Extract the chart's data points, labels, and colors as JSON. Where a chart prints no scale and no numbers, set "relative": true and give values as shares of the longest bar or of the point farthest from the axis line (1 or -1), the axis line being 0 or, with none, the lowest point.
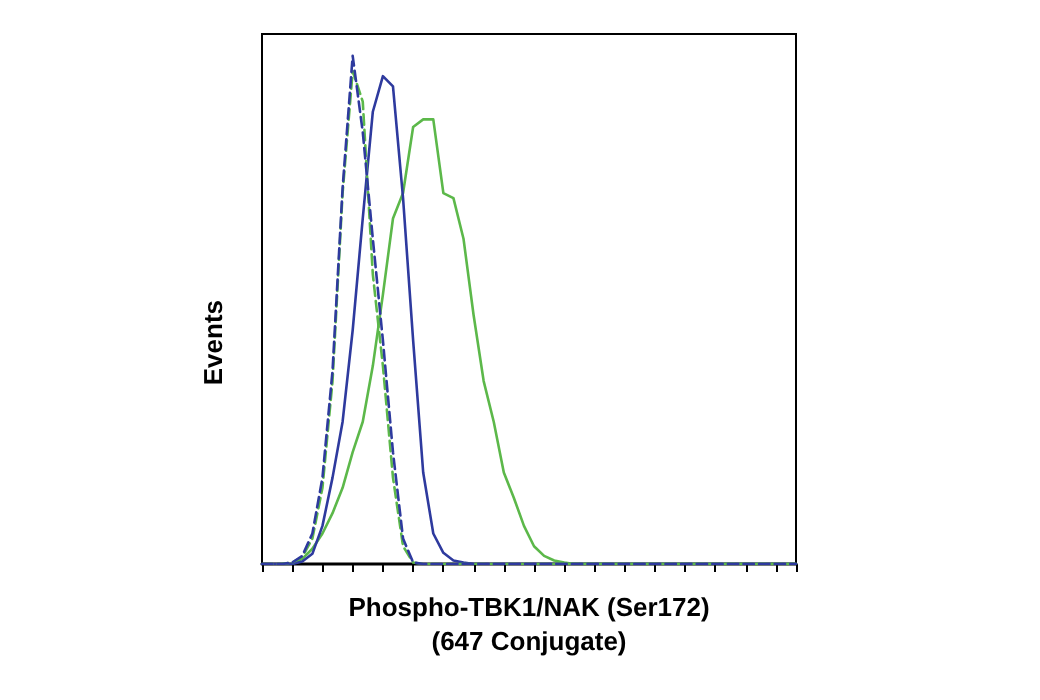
{
  "chart_data": {
    "type": "line",
    "relative": true,
    "xlabel": "Phospho-TBK1/NAK (Ser172)\n(647 Conjugate)",
    "ylabel": "Events",
    "categories": [
      null,
      null,
      null,
      null,
      null,
      null,
      null,
      null,
      null,
      null,
      null,
      null,
      null,
      null,
      null,
      null,
      null,
      null,
      null,
      null,
      null,
      null,
      null,
      null,
      null,
      null,
      null,
      null,
      null,
      null,
      null,
      null,
      null,
      null,
      null,
      null,
      null,
      null,
      null,
      null,
      null,
      null,
      null,
      null,
      null,
      null,
      null,
      null,
      null,
      null,
      null,
      null,
      null,
      null
    ],
    "series": [
      {
        "color": "#5cb84a",
        "line_style": "solid",
        "values": [
          null,
          null,
          0,
          0,
          0.01,
          0.03,
          0.06,
          0.1,
          0.15,
          0.22,
          0.28,
          0.39,
          0.53,
          0.68,
          0.73,
          0.86,
          0.875,
          0.875,
          0.73,
          0.72,
          0.64,
          0.49,
          0.36,
          0.28,
          0.18,
          0.13,
          0.075,
          0.035,
          0.016,
          0.007,
          0.003,
          0,
          0,
          0,
          0,
          0,
          0,
          0,
          0,
          0,
          0,
          0,
          0,
          0,
          0,
          0,
          0,
          0,
          0,
          0,
          0,
          0,
          0,
          0
        ]
      },
      {
        "color": "#2e3a9e",
        "line_style": "solid",
        "values": [
          0,
          0,
          0,
          0,
          0.005,
          0.02,
          0.075,
          0.17,
          0.28,
          0.46,
          0.68,
          0.89,
          0.96,
          0.94,
          0.72,
          0.44,
          0.18,
          0.06,
          0.022,
          0.007,
          0.003,
          0,
          0,
          0,
          0,
          0,
          0,
          0,
          0,
          0,
          0,
          0,
          0,
          0,
          0,
          0,
          0,
          0,
          0,
          0,
          0,
          0,
          0,
          0,
          0,
          0,
          0,
          0,
          0,
          0,
          0,
          0,
          0,
          0
        ]
      },
      {
        "color": "#5cb84a",
        "line_style": "dashed",
        "values": [
          0,
          0,
          0,
          0.003,
          0.014,
          0.05,
          0.15,
          0.36,
          0.73,
          0.97,
          0.91,
          0.57,
          0.39,
          0.17,
          0.035,
          0.003,
          0,
          0,
          0,
          0,
          0,
          0,
          0,
          0,
          0,
          0,
          0,
          0,
          0,
          0,
          0,
          0,
          0,
          0,
          0,
          0,
          0,
          0,
          0,
          0,
          0,
          0,
          0,
          0,
          0,
          0,
          0,
          0,
          0,
          0,
          0,
          0,
          0,
          0
        ]
      },
      {
        "color": "#2e3a9e",
        "line_style": "dashed",
        "values": [
          0,
          0,
          0,
          0.003,
          0.016,
          0.06,
          0.17,
          0.38,
          0.74,
          1,
          0.85,
          0.64,
          0.44,
          0.22,
          0.05,
          0.003,
          0,
          0,
          0,
          0,
          0,
          0,
          0,
          0,
          0,
          0,
          0,
          0,
          0,
          0,
          0,
          0,
          0,
          0,
          0,
          0,
          0,
          0,
          0,
          0,
          0,
          0,
          0,
          0,
          0,
          0,
          0,
          0,
          0,
          0,
          0,
          0,
          0,
          0
        ]
      }
    ]
  }
}
